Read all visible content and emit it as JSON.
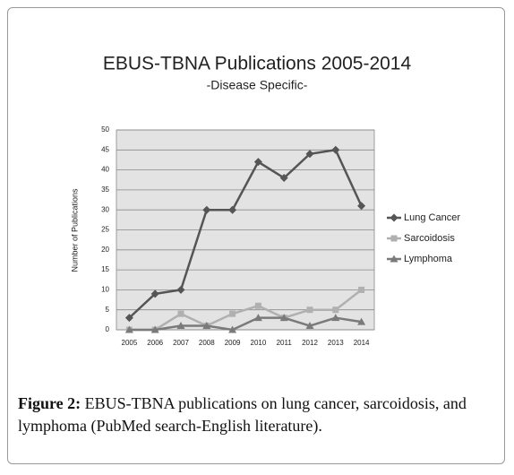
{
  "chart_data": {
    "type": "line",
    "title": "EBUS-TBNA Publications 2005-2014",
    "subtitle": "-Disease Specific-",
    "y_label": "Number of Publications",
    "categories": [
      "2005",
      "2006",
      "2007",
      "2008",
      "2009",
      "2010",
      "2011",
      "2012",
      "2013",
      "2014"
    ],
    "series": [
      {
        "name": "Lung Cancer",
        "color": "#555555",
        "marker": "diamond",
        "values": [
          3,
          9,
          10,
          30,
          30,
          42,
          38,
          44,
          45,
          31
        ]
      },
      {
        "name": "Sarcoidosis",
        "color": "#b0b0b0",
        "marker": "square",
        "values": [
          0,
          0,
          4,
          1,
          4,
          6,
          3,
          5,
          5,
          10
        ]
      },
      {
        "name": "Lymphoma",
        "color": "#7a7a7a",
        "marker": "triangle",
        "values": [
          0,
          0,
          1,
          1,
          0,
          3,
          3,
          1,
          3,
          2
        ]
      }
    ],
    "ylim": [
      0,
      50
    ],
    "yticks": [
      0,
      5,
      10,
      15,
      20,
      25,
      30,
      35,
      40,
      45,
      50
    ],
    "grid": true,
    "legend": "right"
  },
  "caption": {
    "label": "Figure 2:",
    "text": "EBUS-TBNA publications on lung cancer, sarcoidosis, and lymphoma (PubMed search-English literature)."
  }
}
